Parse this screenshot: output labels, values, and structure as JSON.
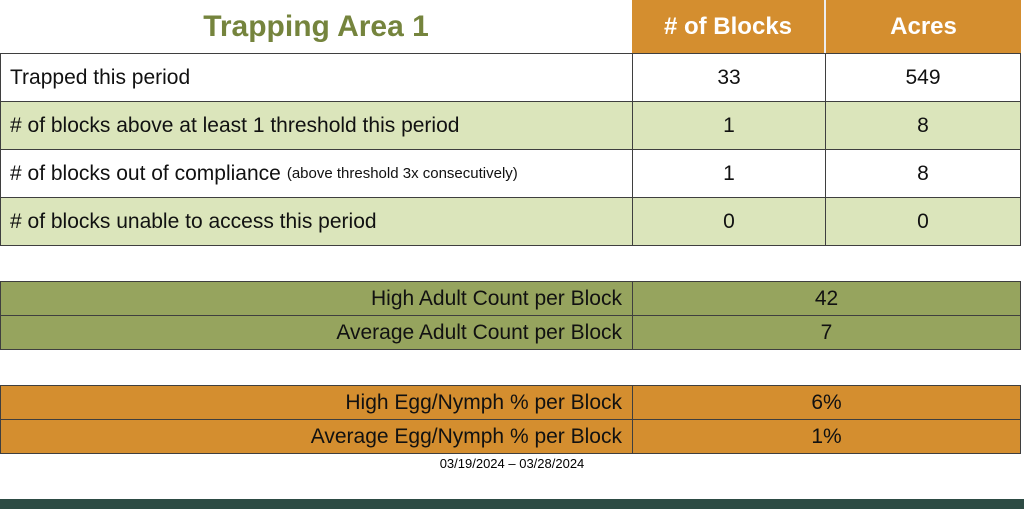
{
  "title": "Trapping Area 1",
  "colors": {
    "orange": "#D48E2F",
    "light_green": "#DBE5BB",
    "olive": "#96A45E",
    "title_green": "#75843D",
    "bar_teal": "#2D4B44",
    "border": "#3F3F3F"
  },
  "main_table": {
    "columns": [
      "# of Blocks",
      "Acres"
    ],
    "rows": [
      {
        "label": "Trapped this period",
        "note": "",
        "blocks": "33",
        "acres": "549"
      },
      {
        "label": "# of blocks above at least 1 threshold this period",
        "note": "",
        "blocks": "1",
        "acres": "8"
      },
      {
        "label": "# of blocks out of compliance",
        "note": "(above threshold 3x consecutively)",
        "blocks": "1",
        "acres": "8"
      },
      {
        "label": "# of blocks unable to access this period",
        "note": "",
        "blocks": "0",
        "acres": "0"
      }
    ]
  },
  "adult_table": {
    "rows": [
      {
        "label": "High Adult Count per Block",
        "value": "42"
      },
      {
        "label": "Average Adult Count per Block",
        "value": "7"
      }
    ]
  },
  "egg_table": {
    "rows": [
      {
        "label": "High Egg/Nymph % per Block",
        "value": "6%"
      },
      {
        "label": "Average Egg/Nymph % per Block",
        "value": "1%"
      }
    ]
  },
  "footer": {
    "date_range": "03/19/2024 – 03/28/2024"
  }
}
